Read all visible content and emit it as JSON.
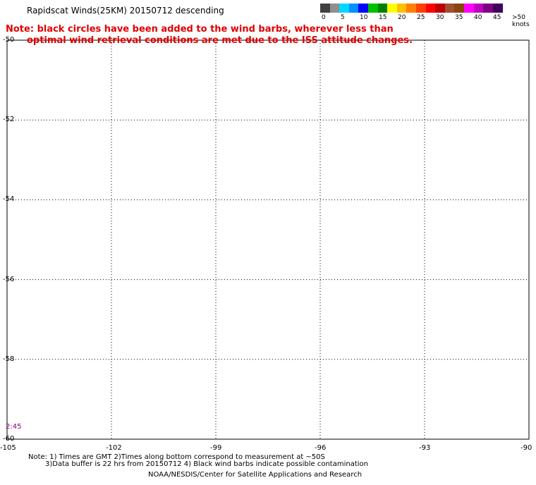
{
  "header": {
    "title": "Rapidscat Winds(25KM) 20150712 descending",
    "note_line1": "Note: black circles have been added to the wind barbs, wherever less than",
    "note_line2": "optimal wind retrieval conditions are met due to the ISS attitude changes."
  },
  "legend": {
    "colors": [
      "#404040",
      "#909090",
      "#00d8ff",
      "#0090ff",
      "#0000ff",
      "#00c000",
      "#008000",
      "#ffff00",
      "#ffc000",
      "#ff8000",
      "#ff4000",
      "#ff0000",
      "#c00000",
      "#a05030",
      "#8b4513",
      "#ff00ff",
      "#c000c0",
      "#800080",
      "#400060"
    ],
    "labels": [
      "0",
      "5",
      "10",
      "15",
      "20",
      "25",
      "30",
      "35",
      "40",
      "45",
      ">50 knots"
    ],
    "label_values": [
      0,
      5,
      10,
      15,
      20,
      25,
      30,
      35,
      40,
      45,
      50
    ]
  },
  "map": {
    "lon_range": [
      -105,
      -90
    ],
    "lat_range": [
      -60,
      -50
    ],
    "lon_ticks": [
      {
        "value": -105,
        "label": "-105"
      },
      {
        "value": -102,
        "label": "-102"
      },
      {
        "value": -99,
        "label": "-99"
      },
      {
        "value": -96,
        "label": "-96"
      },
      {
        "value": -93,
        "label": "-93"
      },
      {
        "value": -90,
        "label": "-90"
      }
    ],
    "lat_ticks": [
      {
        "value": -50,
        "label": "-50"
      },
      {
        "value": -52,
        "label": "-52"
      },
      {
        "value": -54,
        "label": "-54"
      },
      {
        "value": -56,
        "label": "-56"
      },
      {
        "value": -58,
        "label": "-58"
      },
      {
        "value": -60,
        "label": "-60"
      }
    ],
    "time_label": "2:45"
  },
  "footer": {
    "note1": "Note: 1) Times are GMT 2)Times along bottom correspond to measurement at ~50S",
    "note2": "3)Data buffer is 22 hrs from 20150712 4) Black wind barbs indicate possible contamination",
    "credit": "NOAA/NESDIS/Center for Satellite Applications and Research"
  }
}
